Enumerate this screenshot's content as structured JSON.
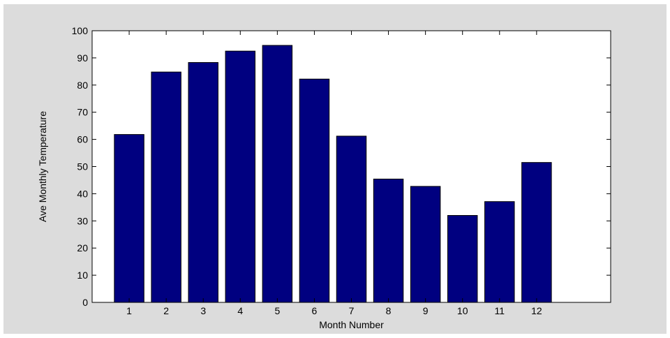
{
  "chart_data": {
    "type": "bar",
    "categories": [
      "1",
      "2",
      "3",
      "4",
      "5",
      "6",
      "7",
      "8",
      "9",
      "10",
      "11",
      "12"
    ],
    "values": [
      61.8,
      84.8,
      88.3,
      92.5,
      94.6,
      82.2,
      61.2,
      45.4,
      42.7,
      32.0,
      37.1,
      51.5
    ],
    "title": "",
    "xlabel": "Month Number",
    "ylabel": "Ave Monthly Temperature",
    "ylim": [
      0,
      100
    ],
    "xlim": [
      0,
      14
    ],
    "yticks": [
      "0",
      "10",
      "20",
      "30",
      "40",
      "50",
      "60",
      "70",
      "80",
      "90",
      "100"
    ],
    "grid": false,
    "bar_color": "#000080",
    "figure_background": "#dcdcdc",
    "axes_background": "#ffffff"
  }
}
